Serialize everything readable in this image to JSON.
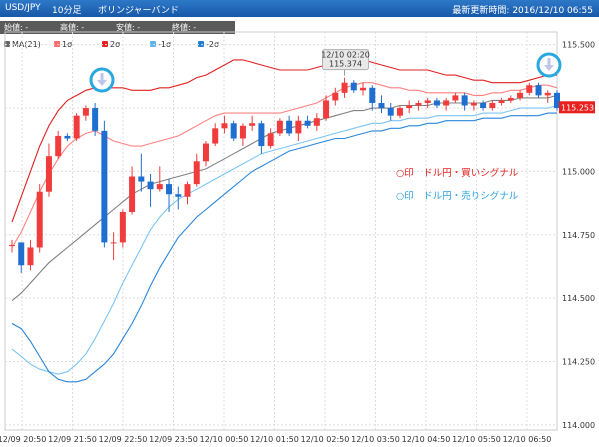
{
  "header": {
    "pair": "USD/JPY",
    "interval": "10分足",
    "indicator": "ボリンジャーバンド",
    "update_label": "最新更新時間: 2016/12/10 06:55"
  },
  "ohlc": {
    "open": "始値: -",
    "high": "高値: -",
    "low": "安値: -",
    "close": "終値: -"
  },
  "legend": [
    {
      "label": "MA(21)",
      "color": "#666666"
    },
    {
      "label": "1σ",
      "color": "#ff6a6a"
    },
    {
      "label": "2σ",
      "color": "#e8201e"
    },
    {
      "label": "-1σ",
      "color": "#5ab4ee"
    },
    {
      "label": "-2σ",
      "color": "#1f7ed6"
    }
  ],
  "annotations": {
    "tooltip_time": "12/10 02:20",
    "tooltip_value": "115.374",
    "last_price": "115.253",
    "buy_signal": "○印　ドル円・買いシグナル",
    "sell_signal": "○印　ドル円・売りシグナル"
  },
  "colors": {
    "up": "#f03c3c",
    "down": "#1f6fd0",
    "ma": "#808080",
    "band1_upper": "#ff8080",
    "band2_upper": "#e02020",
    "band1_lower": "#7cc4f4",
    "band2_lower": "#2a86d8",
    "signal_circle": "#29a8e0",
    "buy_text": "#e8201e",
    "sell_text": "#2aa0e0"
  },
  "chart_data": {
    "type": "candlestick",
    "x_tick_labels": [
      "12/09 20:50",
      "12/09 21:50",
      "12/09 22:50",
      "12/09 23:50",
      "12/10 00:50",
      "12/10 01:50",
      "12/10 02:50",
      "12/10 03:50",
      "12/10 04:50",
      "12/10 05:50",
      "12/10 06:50"
    ],
    "y_ticks": [
      "115.500",
      "115.250",
      "115.000",
      "114.750",
      "114.500",
      "114.250",
      "114.000"
    ],
    "ylim": [
      113.98,
      115.55
    ],
    "candles": [
      {
        "o": 114.71,
        "h": 114.73,
        "l": 114.68,
        "c": 114.71
      },
      {
        "o": 114.72,
        "h": 114.72,
        "l": 114.6,
        "c": 114.63
      },
      {
        "o": 114.63,
        "h": 114.73,
        "l": 114.61,
        "c": 114.7
      },
      {
        "o": 114.7,
        "h": 114.95,
        "l": 114.68,
        "c": 114.92
      },
      {
        "o": 114.92,
        "h": 115.11,
        "l": 114.9,
        "c": 115.06
      },
      {
        "o": 115.06,
        "h": 115.16,
        "l": 115.05,
        "c": 115.14
      },
      {
        "o": 115.14,
        "h": 115.15,
        "l": 115.12,
        "c": 115.13
      },
      {
        "o": 115.13,
        "h": 115.23,
        "l": 115.12,
        "c": 115.22
      },
      {
        "o": 115.22,
        "h": 115.26,
        "l": 115.2,
        "c": 115.25
      },
      {
        "o": 115.25,
        "h": 115.27,
        "l": 115.14,
        "c": 115.16
      },
      {
        "o": 115.16,
        "h": 115.2,
        "l": 114.7,
        "c": 114.72
      },
      {
        "o": 114.72,
        "h": 114.76,
        "l": 114.65,
        "c": 114.72
      },
      {
        "o": 114.72,
        "h": 114.85,
        "l": 114.7,
        "c": 114.84
      },
      {
        "o": 114.84,
        "h": 115.02,
        "l": 114.83,
        "c": 114.98
      },
      {
        "o": 114.98,
        "h": 115.07,
        "l": 114.92,
        "c": 114.96
      },
      {
        "o": 114.96,
        "h": 114.99,
        "l": 114.86,
        "c": 114.93
      },
      {
        "o": 114.93,
        "h": 115.02,
        "l": 114.92,
        "c": 114.95
      },
      {
        "o": 114.95,
        "h": 114.97,
        "l": 114.84,
        "c": 114.91
      },
      {
        "o": 114.91,
        "h": 114.94,
        "l": 114.85,
        "c": 114.9
      },
      {
        "o": 114.9,
        "h": 114.96,
        "l": 114.87,
        "c": 114.95
      },
      {
        "o": 114.95,
        "h": 115.07,
        "l": 114.94,
        "c": 115.04
      },
      {
        "o": 115.04,
        "h": 115.12,
        "l": 115.02,
        "c": 115.11
      },
      {
        "o": 115.11,
        "h": 115.19,
        "l": 115.1,
        "c": 115.17
      },
      {
        "o": 115.17,
        "h": 115.22,
        "l": 115.15,
        "c": 115.19
      },
      {
        "o": 115.19,
        "h": 115.2,
        "l": 115.12,
        "c": 115.13
      },
      {
        "o": 115.13,
        "h": 115.19,
        "l": 115.1,
        "c": 115.18
      },
      {
        "o": 115.18,
        "h": 115.22,
        "l": 115.16,
        "c": 115.19
      },
      {
        "o": 115.19,
        "h": 115.2,
        "l": 115.07,
        "c": 115.1
      },
      {
        "o": 115.1,
        "h": 115.17,
        "l": 115.09,
        "c": 115.15
      },
      {
        "o": 115.15,
        "h": 115.21,
        "l": 115.14,
        "c": 115.2
      },
      {
        "o": 115.2,
        "h": 115.22,
        "l": 115.14,
        "c": 115.15
      },
      {
        "o": 115.15,
        "h": 115.22,
        "l": 115.12,
        "c": 115.2
      },
      {
        "o": 115.2,
        "h": 115.22,
        "l": 115.17,
        "c": 115.18
      },
      {
        "o": 115.18,
        "h": 115.23,
        "l": 115.16,
        "c": 115.21
      },
      {
        "o": 115.21,
        "h": 115.3,
        "l": 115.2,
        "c": 115.28
      },
      {
        "o": 115.28,
        "h": 115.33,
        "l": 115.26,
        "c": 115.31
      },
      {
        "o": 115.31,
        "h": 115.37,
        "l": 115.29,
        "c": 115.35
      },
      {
        "o": 115.35,
        "h": 115.36,
        "l": 115.31,
        "c": 115.32
      },
      {
        "o": 115.32,
        "h": 115.35,
        "l": 115.3,
        "c": 115.33
      },
      {
        "o": 115.33,
        "h": 115.34,
        "l": 115.24,
        "c": 115.27
      },
      {
        "o": 115.27,
        "h": 115.3,
        "l": 115.23,
        "c": 115.25
      },
      {
        "o": 115.25,
        "h": 115.27,
        "l": 115.2,
        "c": 115.22
      },
      {
        "o": 115.22,
        "h": 115.26,
        "l": 115.21,
        "c": 115.25
      },
      {
        "o": 115.25,
        "h": 115.28,
        "l": 115.23,
        "c": 115.26
      },
      {
        "o": 115.26,
        "h": 115.28,
        "l": 115.24,
        "c": 115.27
      },
      {
        "o": 115.27,
        "h": 115.29,
        "l": 115.25,
        "c": 115.28
      },
      {
        "o": 115.28,
        "h": 115.29,
        "l": 115.25,
        "c": 115.26
      },
      {
        "o": 115.26,
        "h": 115.29,
        "l": 115.24,
        "c": 115.28
      },
      {
        "o": 115.28,
        "h": 115.31,
        "l": 115.27,
        "c": 115.3
      },
      {
        "o": 115.3,
        "h": 115.31,
        "l": 115.24,
        "c": 115.26
      },
      {
        "o": 115.26,
        "h": 115.28,
        "l": 115.24,
        "c": 115.27
      },
      {
        "o": 115.27,
        "h": 115.28,
        "l": 115.24,
        "c": 115.25
      },
      {
        "o": 115.25,
        "h": 115.28,
        "l": 115.24,
        "c": 115.27
      },
      {
        "o": 115.27,
        "h": 115.29,
        "l": 115.26,
        "c": 115.28
      },
      {
        "o": 115.28,
        "h": 115.3,
        "l": 115.27,
        "c": 115.29
      },
      {
        "o": 115.29,
        "h": 115.32,
        "l": 115.28,
        "c": 115.31
      },
      {
        "o": 115.31,
        "h": 115.35,
        "l": 115.3,
        "c": 115.34
      },
      {
        "o": 115.34,
        "h": 115.35,
        "l": 115.29,
        "c": 115.3
      },
      {
        "o": 115.3,
        "h": 115.32,
        "l": 115.27,
        "c": 115.31
      },
      {
        "o": 115.31,
        "h": 115.32,
        "l": 115.24,
        "c": 115.25
      }
    ],
    "bands": {
      "upper2": [
        114.8,
        114.9,
        115.0,
        115.1,
        115.18,
        115.24,
        115.28,
        115.3,
        115.32,
        115.33,
        115.33,
        115.33,
        115.33,
        115.32,
        115.32,
        115.32,
        115.33,
        115.33,
        115.34,
        115.35,
        115.37,
        115.38,
        115.4,
        115.42,
        115.44,
        115.44,
        115.43,
        115.42,
        115.41,
        115.4,
        115.4,
        115.4,
        115.4,
        115.41,
        115.42,
        115.43,
        115.44,
        115.44,
        115.44,
        115.43,
        115.42,
        115.41,
        115.4,
        115.4,
        115.4,
        115.4,
        115.39,
        115.38,
        115.38,
        115.37,
        115.36,
        115.36,
        115.35,
        115.35,
        115.35,
        115.35,
        115.36,
        115.37,
        115.38,
        115.38
      ],
      "upper1": [
        114.7,
        114.76,
        114.84,
        114.92,
        114.99,
        115.05,
        115.1,
        115.13,
        115.15,
        115.16,
        115.14,
        115.12,
        115.11,
        115.1,
        115.1,
        115.11,
        115.12,
        115.13,
        115.14,
        115.16,
        115.18,
        115.2,
        115.22,
        115.23,
        115.23,
        115.23,
        115.23,
        115.23,
        115.23,
        115.23,
        115.24,
        115.25,
        115.26,
        115.27,
        115.29,
        115.31,
        115.33,
        115.34,
        115.35,
        115.35,
        115.34,
        115.33,
        115.33,
        115.32,
        115.32,
        115.31,
        115.31,
        115.31,
        115.31,
        115.31,
        115.3,
        115.3,
        115.31,
        115.31,
        115.32,
        115.32,
        115.33,
        115.34,
        115.34,
        115.33
      ],
      "ma": [
        114.49,
        114.52,
        114.56,
        114.6,
        114.64,
        114.67,
        114.7,
        114.73,
        114.76,
        114.79,
        114.82,
        114.85,
        114.88,
        114.91,
        114.93,
        114.95,
        114.96,
        114.97,
        114.98,
        114.99,
        115.0,
        115.01,
        115.03,
        115.05,
        115.07,
        115.09,
        115.11,
        115.13,
        115.15,
        115.16,
        115.17,
        115.18,
        115.19,
        115.2,
        115.21,
        115.22,
        115.23,
        115.24,
        115.24,
        115.25,
        115.25,
        115.25,
        115.26,
        115.26,
        115.26,
        115.26,
        115.27,
        115.27,
        115.27,
        115.27,
        115.27,
        115.27,
        115.28,
        115.28,
        115.28,
        115.29,
        115.29,
        115.29,
        115.29,
        115.3
      ],
      "lower1": [
        114.3,
        114.27,
        114.24,
        114.22,
        114.21,
        114.2,
        114.21,
        114.24,
        114.28,
        114.34,
        114.41,
        114.48,
        114.56,
        114.63,
        114.7,
        114.77,
        114.82,
        114.86,
        114.89,
        114.91,
        114.93,
        114.95,
        114.97,
        114.99,
        115.01,
        115.03,
        115.05,
        115.07,
        115.08,
        115.09,
        115.1,
        115.11,
        115.12,
        115.13,
        115.14,
        115.15,
        115.16,
        115.17,
        115.18,
        115.19,
        115.19,
        115.2,
        115.2,
        115.21,
        115.21,
        115.21,
        115.22,
        115.22,
        115.22,
        115.22,
        115.22,
        115.23,
        115.23,
        115.23,
        115.24,
        115.25,
        115.25,
        115.25,
        115.25,
        115.26
      ],
      "lower2": [
        114.4,
        114.38,
        114.33,
        114.27,
        114.21,
        114.18,
        114.17,
        114.17,
        114.18,
        114.21,
        114.24,
        114.28,
        114.34,
        114.4,
        114.47,
        114.55,
        114.62,
        114.68,
        114.74,
        114.78,
        114.82,
        114.85,
        114.88,
        114.91,
        114.94,
        114.97,
        115.0,
        115.02,
        115.04,
        115.06,
        115.08,
        115.09,
        115.1,
        115.11,
        115.12,
        115.13,
        115.13,
        115.14,
        115.15,
        115.16,
        115.16,
        115.17,
        115.17,
        115.18,
        115.18,
        115.19,
        115.19,
        115.2,
        115.2,
        115.2,
        115.2,
        115.21,
        115.21,
        115.21,
        115.22,
        115.22,
        115.22,
        115.22,
        115.23,
        115.23
      ]
    }
  }
}
